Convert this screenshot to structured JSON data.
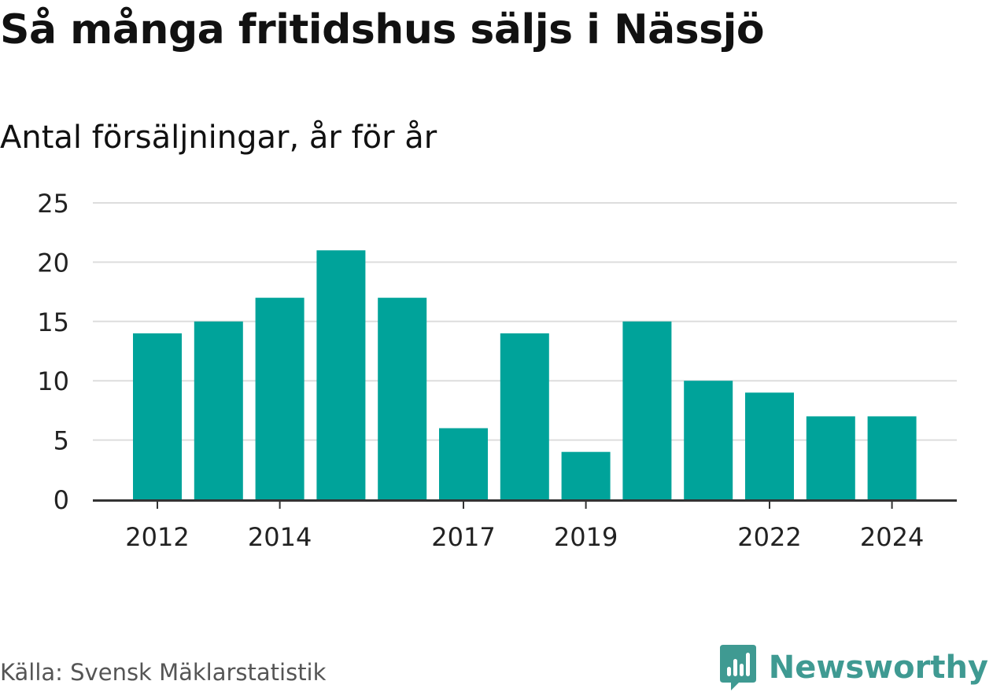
{
  "title": "Så många fritidshus säljs i Nässjö",
  "subtitle": "Antal försäljningar, år för år",
  "source": "Källa: Svensk Mäklarstatistik",
  "brand": "Newsworthy",
  "colors": {
    "bar": "#00a39a",
    "brand": "#3f9a92",
    "grid": "#dddddd",
    "axis": "#333333",
    "text": "#222222"
  },
  "chart_data": {
    "type": "bar",
    "categories": [
      "2012",
      "2013",
      "2014",
      "2015",
      "2016",
      "2017",
      "2018",
      "2019",
      "2020",
      "2021",
      "2022",
      "2023",
      "2024"
    ],
    "values": [
      14,
      15,
      17,
      21,
      17,
      6,
      14,
      4,
      15,
      10,
      9,
      7,
      7
    ],
    "x_tick_labels": [
      "2012",
      "2014",
      "2017",
      "2019",
      "2022",
      "2024"
    ],
    "y_ticks": [
      0,
      5,
      10,
      15,
      20,
      25
    ],
    "ylim": [
      0,
      25
    ],
    "xlabel": "",
    "ylabel": "",
    "grid": "horizontal",
    "legend": "none"
  }
}
